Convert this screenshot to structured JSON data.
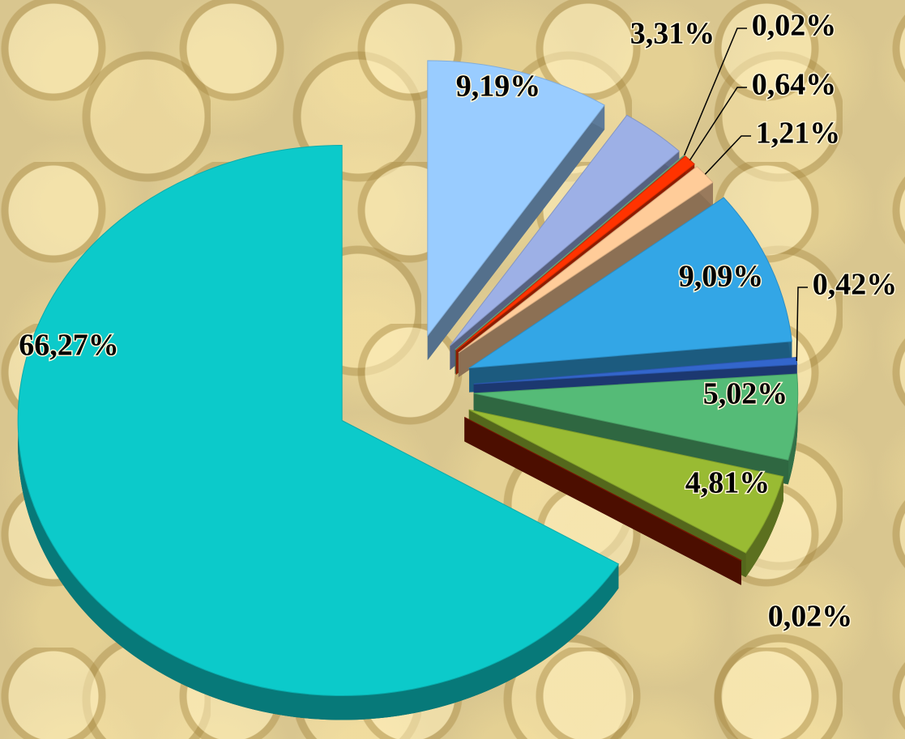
{
  "chart_data": {
    "type": "pie",
    "categories": [
      null,
      null,
      null,
      null,
      null,
      null,
      null,
      null,
      null,
      null,
      null
    ],
    "values": [
      9.19,
      3.31,
      0.02,
      0.64,
      1.21,
      9.09,
      0.42,
      5.02,
      4.81,
      0.02,
      66.27
    ],
    "value_labels": [
      "9,19%",
      "3,31%",
      "0,02%",
      "0,64%",
      "1,21%",
      "9,09%",
      "0,42%",
      "5,02%",
      "4,81%",
      "0,02%",
      "66,27%"
    ],
    "colors": [
      "#99ccff",
      "#9db0e6",
      "#80c090",
      "#ff3300",
      "#ffcc99",
      "#33a6e6",
      "#3366cc",
      "#55bb77",
      "#99bb33",
      "#8b1a00",
      "#0ccaca"
    ]
  }
}
